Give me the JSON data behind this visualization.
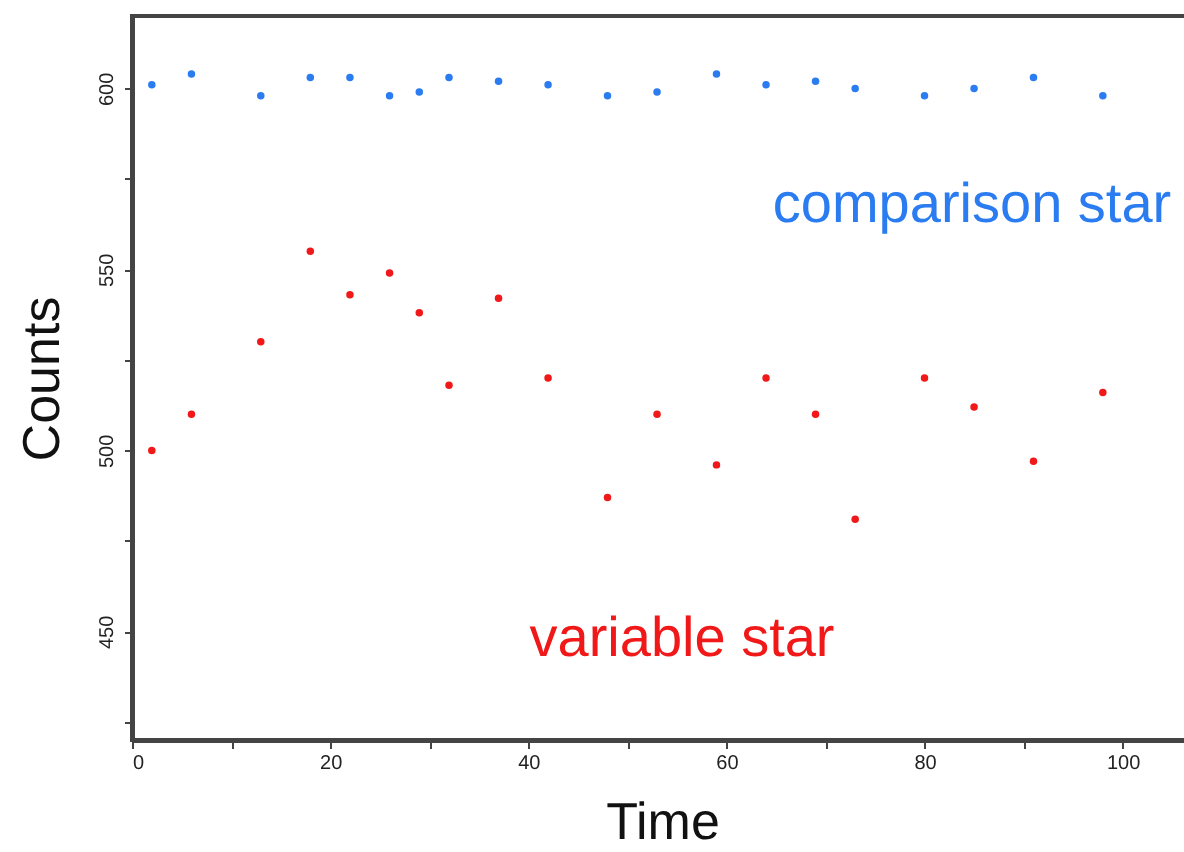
{
  "chart_data": {
    "type": "scatter",
    "xlabel": "Time",
    "ylabel": "Counts",
    "x": [
      2,
      6,
      13,
      18,
      22,
      26,
      29,
      32,
      37,
      42,
      48,
      53,
      59,
      64,
      69,
      73,
      80,
      85,
      91,
      98
    ],
    "series": [
      {
        "name": "comparison star",
        "color": "#2a7cf0",
        "values": [
          601,
          604,
          598,
          603,
          603,
          598,
          599,
          603,
          602,
          601,
          598,
          599,
          604,
          601,
          602,
          600,
          598,
          600,
          603,
          598
        ]
      },
      {
        "name": "variable star",
        "color": "#f01818",
        "values": [
          500,
          510,
          530,
          555,
          543,
          549,
          538,
          518,
          542,
          520,
          487,
          510,
          496,
          520,
          510,
          481,
          520,
          512,
          497,
          516
        ]
      }
    ],
    "xlim": [
      0,
      107
    ],
    "ylim": [
      420,
      620
    ],
    "xticks": [
      0,
      {
        "value": 10,
        "label": null
      },
      20,
      {
        "value": 30,
        "label": null
      },
      40,
      {
        "value": 50,
        "label": null
      },
      60,
      {
        "value": 70,
        "label": null
      },
      80,
      {
        "value": 90,
        "label": null
      },
      100
    ],
    "yticks": [
      {
        "value": 425,
        "label": null
      },
      450,
      {
        "value": 475,
        "label": null
      },
      500,
      {
        "value": 525,
        "label": null
      },
      550,
      {
        "value": 575,
        "label": null
      },
      600
    ],
    "marker": "circle",
    "legend": false,
    "grid": false
  }
}
